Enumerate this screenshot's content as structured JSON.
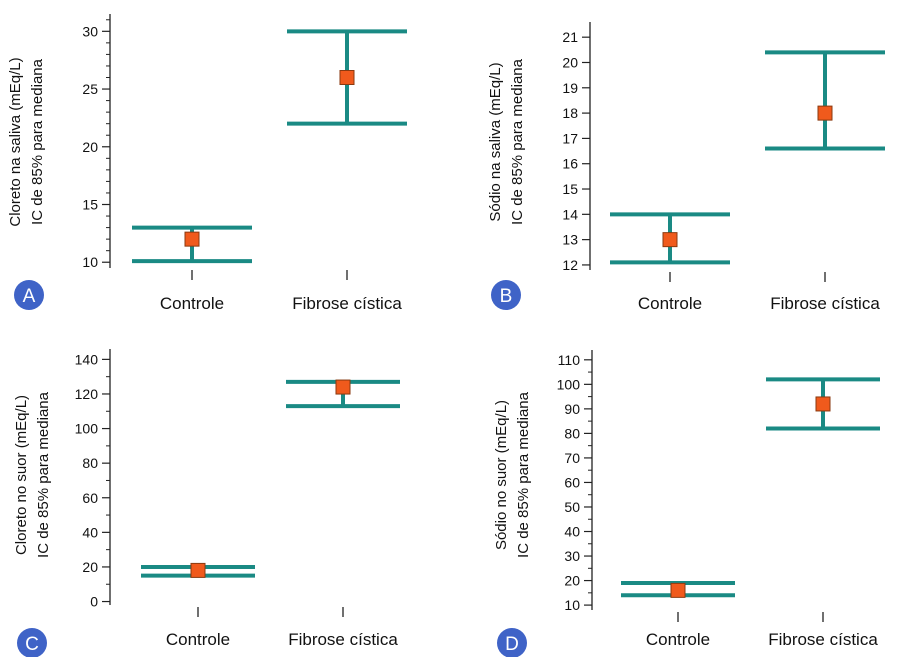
{
  "colors": {
    "whisker": "#1a8a84",
    "median": "#f05a1c",
    "median_stroke": "#8a3a10",
    "badge": "#3f63c7",
    "axis": "#222222"
  },
  "chart_data": [
    {
      "type": "errorbar",
      "panel_label": "A",
      "categories": [
        "Controle",
        "Fibrose cística"
      ],
      "ylabel_lines": [
        "Cloreto na saliva (mEq/L)",
        "IC de 85% para mediana"
      ],
      "ylim": [
        9.5,
        31.5
      ],
      "yticks": [
        10,
        15,
        20,
        25,
        30
      ],
      "minor_step": 1,
      "medians": [
        12,
        26
      ],
      "lower": [
        10.1,
        22
      ],
      "upper": [
        13,
        30
      ]
    },
    {
      "type": "errorbar",
      "panel_label": "B",
      "categories": [
        "Controle",
        "Fibrose cística"
      ],
      "ylabel_lines": [
        "Sódio na saliva (mEq/L)",
        "IC de 85% para mediana"
      ],
      "ylim": [
        11.8,
        21.6
      ],
      "yticks": [
        12,
        13,
        14,
        15,
        16,
        17,
        18,
        19,
        20,
        21
      ],
      "minor_step": 0,
      "medians": [
        13,
        18
      ],
      "lower": [
        12.1,
        16.6
      ],
      "upper": [
        14,
        20.4
      ]
    },
    {
      "type": "errorbar",
      "panel_label": "C",
      "categories": [
        "Controle",
        "Fibrose cística"
      ],
      "ylabel_lines": [
        "Cloreto no suor (mEq/L)",
        "IC de 85% para mediana"
      ],
      "ylim": [
        -2,
        146
      ],
      "yticks": [
        0,
        20,
        40,
        60,
        80,
        100,
        120,
        140
      ],
      "minor_step": 10,
      "medians": [
        18,
        124
      ],
      "lower": [
        15,
        113
      ],
      "upper": [
        20,
        127
      ]
    },
    {
      "type": "errorbar",
      "panel_label": "D",
      "categories": [
        "Controle",
        "Fibrose cística"
      ],
      "ylabel_lines": [
        "Sódio no suor (mEq/L)",
        "IC de 85% para mediana"
      ],
      "ylim": [
        8,
        114
      ],
      "yticks": [
        10,
        20,
        30,
        40,
        50,
        60,
        70,
        80,
        90,
        100,
        110
      ],
      "minor_step": 5,
      "medians": [
        16,
        92
      ],
      "lower": [
        14,
        82
      ],
      "upper": [
        19,
        102
      ]
    }
  ]
}
